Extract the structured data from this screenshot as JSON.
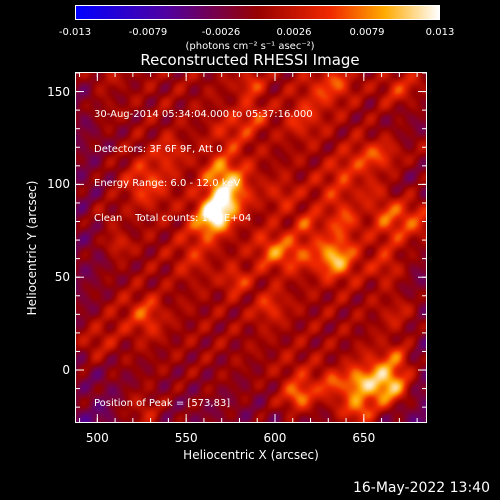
{
  "colorbar": {
    "ticks": [
      "-0.013",
      "-0.0079",
      "-0.0026",
      "0.0026",
      "0.0079",
      "0.013"
    ],
    "units": "(photons cm⁻² s⁻¹ asec⁻²)"
  },
  "chart_data": {
    "type": "heatmap",
    "title": "Reconstructed RHESSI Image",
    "xlabel": "Heliocentric X (arcsec)",
    "ylabel": "Heliocentric Y (arcsec)",
    "xlim": [
      488,
      685
    ],
    "ylim": [
      -28,
      160
    ],
    "x_ticks": [
      "500",
      "550",
      "600",
      "650"
    ],
    "y_ticks": [
      "0",
      "50",
      "100",
      "150"
    ],
    "colormap": "hot",
    "value_range": [
      -0.013,
      0.013
    ],
    "sources": [
      {
        "x": 568,
        "y": 87,
        "relative_intensity": 1.0
      },
      {
        "x": 597,
        "y": 34,
        "relative_intensity": 0.35
      }
    ],
    "annotations": {
      "time_range": "30-Aug-2014 05:34:04.000 to 05:37:16.000",
      "detectors": "Detectors: 3F 6F 9F, Att 0",
      "energy_range": "Energy Range: 6.0 - 12.0 keV",
      "method_counts": "Clean    Total counts: 1.92E+04",
      "peak_position": "Position of Peak = [573,83]"
    }
  },
  "footer": {
    "timestamp": "16-May-2022 13:40"
  }
}
